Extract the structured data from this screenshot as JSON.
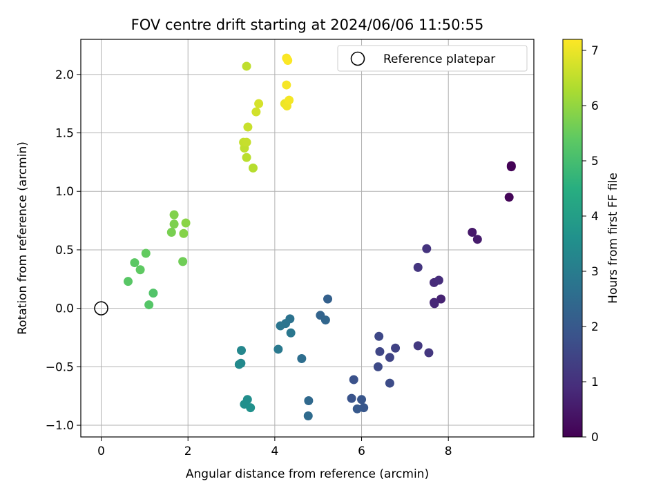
{
  "chart_data": {
    "type": "scatter",
    "title": "FOV centre drift starting at 2024/06/06 11:50:55",
    "xlabel": "Angular distance from reference (arcmin)",
    "ylabel": "Rotation from reference (arcmin)",
    "xlim": [
      -0.47,
      9.97
    ],
    "ylim": [
      -1.1,
      2.3
    ],
    "xticks": [
      0,
      2,
      4,
      6,
      8
    ],
    "xtick_labels": [
      "0",
      "2",
      "4",
      "6",
      "8"
    ],
    "yticks": [
      -1.0,
      -0.5,
      0.0,
      0.5,
      1.0,
      1.5,
      2.0
    ],
    "ytick_labels": [
      "−1.0",
      "−0.5",
      "0.0",
      "0.5",
      "1.0",
      "1.5",
      "2.0"
    ],
    "grid": true,
    "legend": {
      "position": "top-right",
      "entries": [
        "Reference platepar"
      ]
    },
    "reference_point": {
      "x": 0,
      "y": 0,
      "label": "Reference platepar"
    },
    "colorbar": {
      "label": "Hours from first FF file",
      "range": [
        0,
        7.2
      ],
      "ticks": [
        0,
        1,
        2,
        3,
        4,
        5,
        6,
        7
      ],
      "tick_labels": [
        "0",
        "1",
        "2",
        "3",
        "4",
        "5",
        "6",
        "7"
      ],
      "colormap": "viridis"
    },
    "points": [
      {
        "x": 9.45,
        "y": 1.22,
        "h": 0.0
      },
      {
        "x": 9.45,
        "y": 1.21,
        "h": 0.05
      },
      {
        "x": 9.4,
        "y": 0.95,
        "h": 0.1
      },
      {
        "x": 8.55,
        "y": 0.65,
        "h": 0.5
      },
      {
        "x": 8.67,
        "y": 0.59,
        "h": 0.55
      },
      {
        "x": 7.83,
        "y": 0.08,
        "h": 0.7
      },
      {
        "x": 7.67,
        "y": 0.05,
        "h": 0.75
      },
      {
        "x": 7.68,
        "y": 0.04,
        "h": 0.8
      },
      {
        "x": 7.67,
        "y": 0.22,
        "h": 0.85
      },
      {
        "x": 7.78,
        "y": 0.24,
        "h": 0.9
      },
      {
        "x": 7.5,
        "y": 0.51,
        "h": 1.05
      },
      {
        "x": 7.3,
        "y": 0.35,
        "h": 1.1
      },
      {
        "x": 7.55,
        "y": -0.38,
        "h": 1.15
      },
      {
        "x": 7.3,
        "y": -0.32,
        "h": 1.2
      },
      {
        "x": 6.78,
        "y": -0.34,
        "h": 1.4
      },
      {
        "x": 6.65,
        "y": -0.42,
        "h": 1.45
      },
      {
        "x": 6.42,
        "y": -0.37,
        "h": 1.5
      },
      {
        "x": 6.4,
        "y": -0.24,
        "h": 1.55
      },
      {
        "x": 6.38,
        "y": -0.5,
        "h": 1.6
      },
      {
        "x": 6.65,
        "y": -0.64,
        "h": 1.65
      },
      {
        "x": 5.82,
        "y": -0.61,
        "h": 1.8
      },
      {
        "x": 5.77,
        "y": -0.77,
        "h": 1.85
      },
      {
        "x": 6.0,
        "y": -0.78,
        "h": 1.9
      },
      {
        "x": 6.05,
        "y": -0.85,
        "h": 1.95
      },
      {
        "x": 5.9,
        "y": -0.86,
        "h": 2.0
      },
      {
        "x": 5.22,
        "y": 0.08,
        "h": 2.2
      },
      {
        "x": 5.05,
        "y": -0.06,
        "h": 2.3
      },
      {
        "x": 5.17,
        "y": -0.1,
        "h": 2.35
      },
      {
        "x": 4.78,
        "y": -0.79,
        "h": 2.45
      },
      {
        "x": 4.77,
        "y": -0.92,
        "h": 2.5
      },
      {
        "x": 4.62,
        "y": -0.43,
        "h": 2.6
      },
      {
        "x": 4.35,
        "y": -0.09,
        "h": 2.7
      },
      {
        "x": 4.25,
        "y": -0.13,
        "h": 2.75
      },
      {
        "x": 4.13,
        "y": -0.15,
        "h": 2.8
      },
      {
        "x": 4.37,
        "y": -0.21,
        "h": 2.85
      },
      {
        "x": 4.08,
        "y": -0.35,
        "h": 2.9
      },
      {
        "x": 3.23,
        "y": -0.36,
        "h": 3.3
      },
      {
        "x": 3.22,
        "y": -0.47,
        "h": 3.35
      },
      {
        "x": 3.18,
        "y": -0.48,
        "h": 3.4
      },
      {
        "x": 3.37,
        "y": -0.78,
        "h": 3.5
      },
      {
        "x": 3.3,
        "y": -0.82,
        "h": 3.55
      },
      {
        "x": 3.44,
        "y": -0.85,
        "h": 3.6
      },
      {
        "x": 1.2,
        "y": 0.13,
        "h": 5.2
      },
      {
        "x": 1.1,
        "y": 0.03,
        "h": 5.25
      },
      {
        "x": 0.62,
        "y": 0.23,
        "h": 5.3
      },
      {
        "x": 0.77,
        "y": 0.39,
        "h": 5.35
      },
      {
        "x": 0.9,
        "y": 0.33,
        "h": 5.4
      },
      {
        "x": 1.03,
        "y": 0.47,
        "h": 5.45
      },
      {
        "x": 1.88,
        "y": 0.4,
        "h": 5.6
      },
      {
        "x": 1.62,
        "y": 0.65,
        "h": 5.7
      },
      {
        "x": 1.68,
        "y": 0.72,
        "h": 5.75
      },
      {
        "x": 1.68,
        "y": 0.8,
        "h": 5.8
      },
      {
        "x": 1.9,
        "y": 0.64,
        "h": 5.85
      },
      {
        "x": 1.95,
        "y": 0.73,
        "h": 5.9
      },
      {
        "x": 3.5,
        "y": 1.2,
        "h": 6.4
      },
      {
        "x": 3.35,
        "y": 1.29,
        "h": 6.45
      },
      {
        "x": 3.3,
        "y": 1.37,
        "h": 6.5
      },
      {
        "x": 3.28,
        "y": 1.42,
        "h": 6.55
      },
      {
        "x": 3.35,
        "y": 1.42,
        "h": 6.58
      },
      {
        "x": 3.38,
        "y": 1.55,
        "h": 6.6
      },
      {
        "x": 3.57,
        "y": 1.68,
        "h": 6.7
      },
      {
        "x": 3.63,
        "y": 1.75,
        "h": 6.75
      },
      {
        "x": 3.35,
        "y": 2.07,
        "h": 6.5
      },
      {
        "x": 4.23,
        "y": 1.75,
        "h": 7.0
      },
      {
        "x": 4.28,
        "y": 1.73,
        "h": 7.05
      },
      {
        "x": 4.33,
        "y": 1.78,
        "h": 7.1
      },
      {
        "x": 4.27,
        "y": 1.91,
        "h": 7.12
      },
      {
        "x": 4.27,
        "y": 2.14,
        "h": 7.15
      },
      {
        "x": 4.3,
        "y": 2.12,
        "h": 7.18
      }
    ]
  }
}
